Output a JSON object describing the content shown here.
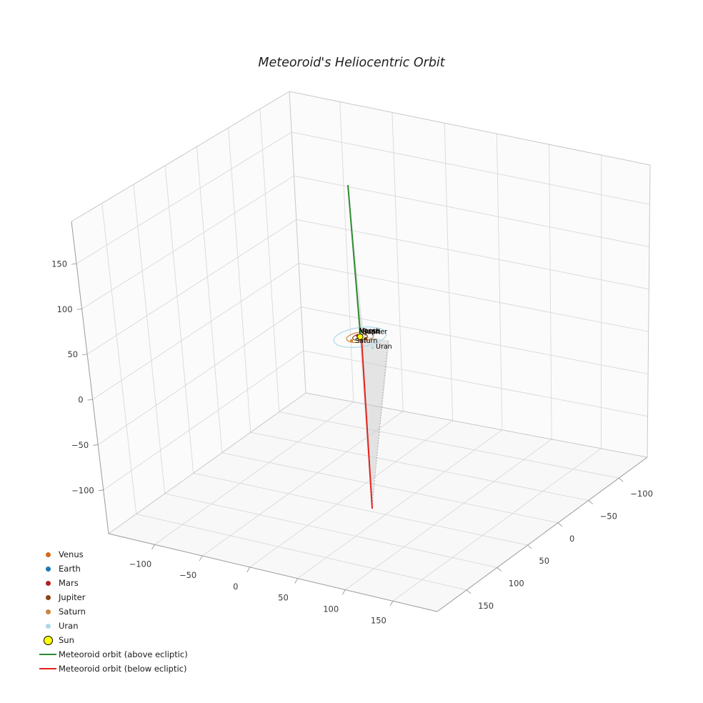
{
  "title": "Meteoroid's Heliocentric Orbit",
  "chart_data": {
    "type": "line",
    "projection": "3d",
    "title": "Meteoroid's Heliocentric Orbit",
    "background": "#ffffff",
    "grid": true,
    "grid_color": "#d9d9d9",
    "x_ticks": [
      -100,
      -50,
      0,
      50,
      100,
      150
    ],
    "y_ticks": [
      -100,
      -50,
      0,
      50,
      100,
      150
    ],
    "z_ticks": [
      -100,
      -50,
      0,
      50,
      100,
      150
    ],
    "axis_range_est": [
      -160,
      200
    ],
    "planets": [
      {
        "name": "Venus",
        "color": "#d2691e",
        "orbit_radius_au_est": 0.7
      },
      {
        "name": "Earth",
        "color": "#1f77b4",
        "orbit_radius_au_est": 1.0
      },
      {
        "name": "Mars",
        "color": "#b22222",
        "orbit_radius_au_est": 1.5
      },
      {
        "name": "Jupiter",
        "color": "#8b4513",
        "orbit_radius_au_est": 5.2
      },
      {
        "name": "Saturn",
        "color": "#cd853f",
        "orbit_radius_au_est": 9.5
      },
      {
        "name": "Uran",
        "color": "#add8e6",
        "orbit_radius_au_est": 19.2
      }
    ],
    "sun": {
      "name": "Sun",
      "color": "#ffff00",
      "edge_color": "#000000"
    },
    "series": [
      {
        "name": "Meteoroid orbit (above ecliptic)",
        "color": "#2e8b2e",
        "style": "solid",
        "z_extent_est": [
          0,
          185
        ]
      },
      {
        "name": "Meteoroid orbit (below ecliptic)",
        "color": "#e3231e",
        "style": "solid",
        "z_extent_est": [
          -170,
          0
        ]
      }
    ],
    "projection_shading_color": "#c8c8c8",
    "legend_position": "lower left"
  },
  "legend": {
    "items": [
      {
        "id": "venus",
        "label": "Venus",
        "marker": "dot",
        "color": "#d2691e"
      },
      {
        "id": "earth",
        "label": "Earth",
        "marker": "dot",
        "color": "#1f77b4"
      },
      {
        "id": "mars",
        "label": "Mars",
        "marker": "dot",
        "color": "#b22222"
      },
      {
        "id": "jupiter",
        "label": "Jupiter",
        "marker": "dot",
        "color": "#8b4513"
      },
      {
        "id": "saturn",
        "label": "Saturn",
        "marker": "dot",
        "color": "#cd853f"
      },
      {
        "id": "uran",
        "label": "Uran",
        "marker": "dot",
        "color": "#add8e6"
      },
      {
        "id": "sun",
        "label": "Sun",
        "marker": "dot",
        "color": "#ffff00",
        "big": true,
        "edge": "#000000"
      },
      {
        "id": "orbit-above",
        "label": "Meteoroid orbit (above ecliptic)",
        "marker": "line",
        "color": "#2e8b2e"
      },
      {
        "id": "orbit-below",
        "label": "Meteoroid orbit (below ecliptic)",
        "marker": "line",
        "color": "#e3231e"
      }
    ]
  }
}
